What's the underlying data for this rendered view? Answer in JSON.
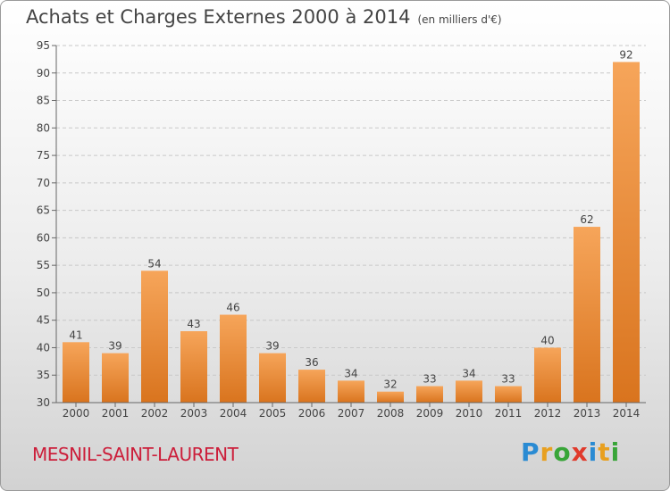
{
  "header": {
    "title": "Achats et Charges Externes 2000 à 2014",
    "subtitle": "(en milliers d'€)"
  },
  "footer": {
    "commune": "MESNIL-SAINT-LAURENT",
    "logo_letters": [
      "P",
      "r",
      "o",
      "x",
      "i",
      "t",
      "i"
    ],
    "logo_colors": [
      "#2a8bd3",
      "#e8a020",
      "#38a538",
      "#e03a2c",
      "#2a8bd3",
      "#e8a020",
      "#38a538"
    ]
  },
  "colors": {
    "bar_light": "#f6a55a",
    "bar_dark": "#d9741e",
    "commune": "#cc1e3a"
  },
  "chart_data": {
    "type": "bar",
    "title": "Achats et Charges Externes 2000 à 2014",
    "subtitle": "(en milliers d'€)",
    "categories": [
      "2000",
      "2001",
      "2002",
      "2003",
      "2004",
      "2005",
      "2006",
      "2007",
      "2008",
      "2009",
      "2010",
      "2011",
      "2012",
      "2013",
      "2014"
    ],
    "values": [
      41,
      39,
      54,
      43,
      46,
      39,
      36,
      34,
      32,
      33,
      34,
      33,
      40,
      62,
      92
    ],
    "ylim": [
      30,
      95
    ],
    "yticks": [
      30,
      35,
      40,
      45,
      50,
      55,
      60,
      65,
      70,
      75,
      80,
      85,
      90,
      95
    ],
    "grid": true,
    "data_labels": true
  }
}
